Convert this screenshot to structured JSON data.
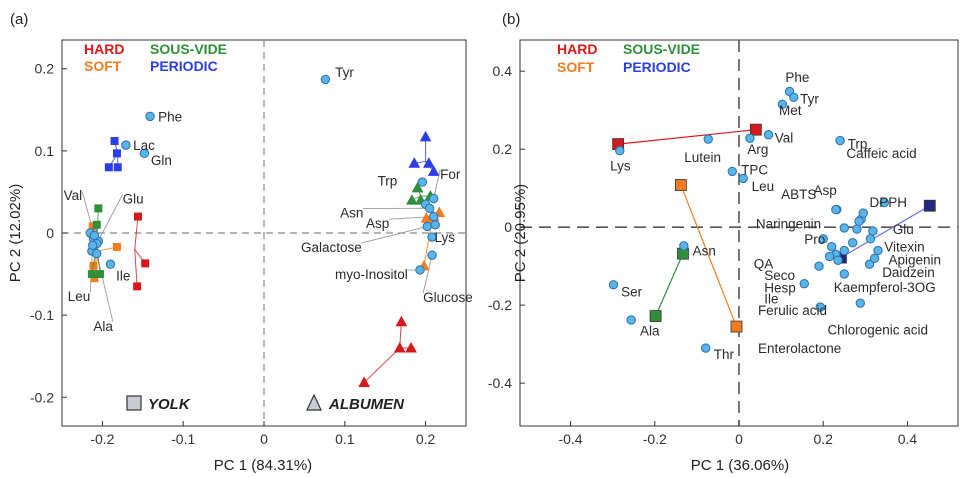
{
  "colors": {
    "hard": "#d7191c",
    "soft": "#f47c20",
    "sous_vide": "#2f8f3a",
    "periodic": "#2b3ee8",
    "point_fill": "#5ab4e6",
    "point_stroke": "#2a6fb0",
    "navy": "#1f2a80",
    "axis": "#333333",
    "dash": "#888888",
    "leader": "#9a9a9a"
  },
  "chart_data": [
    {
      "type": "scatter",
      "panel_label": "(a)",
      "xlabel": "PC 1 (84.31%)",
      "ylabel": "PC 2 (12.02%)",
      "xlim": [
        -0.25,
        0.25
      ],
      "ylim": [
        -0.235,
        0.235
      ],
      "xticks": [
        -0.2,
        -0.1,
        0,
        0.1,
        0.2
      ],
      "xtick_labels": [
        "-0.2",
        "-0.1",
        "0",
        "0.1",
        "0.2"
      ],
      "yticks": [
        -0.2,
        -0.1,
        0,
        0.1,
        0.2
      ],
      "ytick_labels": [
        "-0.2",
        "-0.1",
        "0",
        "0.1",
        "0.2"
      ],
      "legend": [
        {
          "text": "HARD",
          "color_key": "hard",
          "col": 0,
          "row": 0
        },
        {
          "text": "SOUS-VIDE",
          "color_key": "sous_vide",
          "col": 1,
          "row": 0
        },
        {
          "text": "SOFT",
          "color_key": "soft",
          "col": 0,
          "row": 1
        },
        {
          "text": "PERIODIC",
          "color_key": "periodic",
          "col": 1,
          "row": 1
        }
      ],
      "shape_legend": [
        {
          "text": "YOLK",
          "shape": "square"
        },
        {
          "text": "ALBUMEN",
          "shape": "triangle"
        }
      ],
      "variables": [
        {
          "name": "Phe",
          "x": -0.141,
          "y": 0.142
        },
        {
          "name": "Lac",
          "x": -0.171,
          "y": 0.107
        },
        {
          "name": "Gln",
          "x": -0.148,
          "y": 0.097
        },
        {
          "name": "Tyr",
          "x": 0.076,
          "y": 0.187
        },
        {
          "name": "Val",
          "x": -0.21,
          "y": -0.003
        },
        {
          "name": "Glu",
          "x": -0.207,
          "y": -0.013
        },
        {
          "name": "Ile",
          "x": -0.19,
          "y": -0.038
        },
        {
          "name": "Leu",
          "x": -0.212,
          "y": -0.015
        },
        {
          "name": "Ala",
          "x": -0.207,
          "y": -0.025
        },
        {
          "name": "Trp",
          "x": 0.196,
          "y": 0.062
        },
        {
          "name": "For",
          "x": 0.21,
          "y": 0.042
        },
        {
          "name": "Asn",
          "x": 0.205,
          "y": 0.03
        },
        {
          "name": "Asp",
          "x": 0.21,
          "y": 0.02
        },
        {
          "name": "Galactose",
          "x": 0.202,
          "y": 0.008
        },
        {
          "name": "Lys",
          "x": 0.208,
          "y": -0.005
        },
        {
          "name": "myo-Inositol",
          "x": 0.193,
          "y": -0.045
        },
        {
          "name": "Glucose",
          "x": 0.208,
          "y": -0.027
        }
      ],
      "unlabeled_points": [
        {
          "x": -0.215,
          "y": 0.0
        },
        {
          "x": -0.211,
          "y": -0.007
        },
        {
          "x": -0.205,
          "y": -0.01
        },
        {
          "x": -0.213,
          "y": -0.022
        },
        {
          "x": 0.2,
          "y": 0.035
        },
        {
          "x": 0.212,
          "y": 0.01
        }
      ],
      "label_offsets_note": "labels placed beside points",
      "label_positions": [
        {
          "name": "Phe",
          "lx": -0.131,
          "ly": 0.142,
          "anchor": "start"
        },
        {
          "name": "Lac",
          "lx": -0.162,
          "ly": 0.107,
          "anchor": "start"
        },
        {
          "name": "Gln",
          "lx": -0.14,
          "ly": 0.089,
          "anchor": "start"
        },
        {
          "name": "Tyr",
          "lx": 0.088,
          "ly": 0.196,
          "anchor": "start"
        },
        {
          "name": "Val",
          "lx": -0.225,
          "ly": 0.046,
          "anchor": "end",
          "leader": true
        },
        {
          "name": "Glu",
          "lx": -0.175,
          "ly": 0.042,
          "anchor": "start",
          "leader": true
        },
        {
          "name": "Ile",
          "lx": -0.183,
          "ly": -0.052,
          "anchor": "start"
        },
        {
          "name": "Leu",
          "lx": -0.215,
          "ly": -0.077,
          "anchor": "end",
          "leader": true
        },
        {
          "name": "Ala",
          "lx": -0.187,
          "ly": -0.113,
          "anchor": "end",
          "leader": true
        },
        {
          "name": "Trp",
          "lx": 0.165,
          "ly": 0.064,
          "anchor": "end"
        },
        {
          "name": "For",
          "lx": 0.218,
          "ly": 0.072,
          "anchor": "start",
          "leader": true
        },
        {
          "name": "Asn",
          "lx": 0.123,
          "ly": 0.025,
          "anchor": "end",
          "leader": true
        },
        {
          "name": "Asp",
          "lx": 0.155,
          "ly": 0.012,
          "anchor": "end",
          "leader": true
        },
        {
          "name": "Galactose",
          "lx": 0.121,
          "ly": -0.017,
          "anchor": "end",
          "leader": true
        },
        {
          "name": "Lys",
          "lx": 0.211,
          "ly": -0.005,
          "anchor": "start"
        },
        {
          "name": "myo-Inositol",
          "lx": 0.178,
          "ly": -0.05,
          "anchor": "end",
          "leader": true
        },
        {
          "name": "Glucose",
          "lx": 0.197,
          "ly": -0.078,
          "anchor": "start",
          "leader": true
        }
      ],
      "groups": [
        {
          "treatment": "periodic",
          "shape": "square",
          "points": [
            [
              -0.185,
              0.112
            ],
            [
              -0.192,
              0.08
            ],
            [
              -0.181,
              0.08
            ],
            [
              -0.182,
              0.097
            ]
          ],
          "center": [
            -0.181,
            0.097
          ]
        },
        {
          "treatment": "hard",
          "shape": "square",
          "points": [
            [
              -0.156,
              0.02
            ],
            [
              -0.147,
              -0.037
            ],
            [
              -0.157,
              -0.065
            ]
          ],
          "center": [
            -0.16,
            -0.02
          ]
        },
        {
          "treatment": "soft",
          "shape": "square",
          "points": [
            [
              -0.212,
              0.008
            ],
            [
              -0.211,
              -0.04
            ],
            [
              -0.21,
              -0.055
            ],
            [
              -0.182,
              -0.017
            ]
          ],
          "center": [
            -0.205,
            -0.022
          ]
        },
        {
          "treatment": "sous_vide",
          "shape": "square",
          "points": [
            [
              -0.205,
              0.03
            ],
            [
              -0.213,
              -0.05
            ],
            [
              -0.203,
              -0.05
            ],
            [
              -0.207,
              0.01
            ]
          ],
          "center": [
            -0.207,
            -0.015
          ]
        },
        {
          "treatment": "periodic",
          "shape": "triangle",
          "points": [
            [
              0.2,
              0.117
            ],
            [
              0.186,
              0.085
            ],
            [
              0.204,
              0.085
            ],
            [
              0.21,
              0.075
            ]
          ],
          "center": [
            0.2,
            0.087
          ]
        },
        {
          "treatment": "sous_vide",
          "shape": "triangle",
          "points": [
            [
              0.19,
              0.055
            ],
            [
              0.183,
              0.04
            ],
            [
              0.194,
              0.04
            ],
            [
              0.206,
              0.045
            ]
          ],
          "center": [
            0.194,
            0.045
          ]
        },
        {
          "treatment": "soft",
          "shape": "triangle",
          "points": [
            [
              0.217,
              0.025
            ],
            [
              0.201,
              0.018
            ],
            [
              0.198,
              -0.04
            ],
            [
              0.21,
              0.02
            ]
          ],
          "center": [
            0.207,
            0.01
          ]
        },
        {
          "treatment": "hard",
          "shape": "triangle",
          "points": [
            [
              0.17,
              -0.108
            ],
            [
              0.182,
              -0.14
            ],
            [
              0.124,
              -0.182
            ],
            [
              0.168,
              -0.14
            ]
          ],
          "center": [
            0.168,
            -0.14
          ]
        }
      ]
    },
    {
      "type": "scatter",
      "panel_label": "(b)",
      "xlabel": "PC 1 (36.06%)",
      "ylabel": "PC 2 (20.95%)",
      "xlim": [
        -0.52,
        0.52
      ],
      "ylim": [
        -0.51,
        0.48
      ],
      "xticks": [
        -0.4,
        -0.2,
        0,
        0.2,
        0.4
      ],
      "xtick_labels": [
        "-0.4",
        "-0.2",
        "0",
        "0.2",
        "0.4"
      ],
      "yticks": [
        -0.4,
        -0.2,
        0,
        0.2,
        0.4
      ],
      "ytick_labels": [
        "-0.4",
        "-0.2",
        "0",
        "0.2",
        "0.4"
      ],
      "legend": [
        {
          "text": "HARD",
          "color_key": "hard",
          "col": 0,
          "row": 0
        },
        {
          "text": "SOUS-VIDE",
          "color_key": "sous_vide",
          "col": 1,
          "row": 0
        },
        {
          "text": "SOFT",
          "color_key": "soft",
          "col": 0,
          "row": 1
        },
        {
          "text": "PERIODIC",
          "color_key": "periodic",
          "col": 1,
          "row": 1
        }
      ],
      "variables": [
        {
          "name": "Phe",
          "x": 0.12,
          "y": 0.348
        },
        {
          "name": "Tyr",
          "x": 0.13,
          "y": 0.333
        },
        {
          "name": "Met",
          "x": 0.103,
          "y": 0.315
        },
        {
          "name": "Val",
          "x": 0.07,
          "y": 0.237
        },
        {
          "name": "Arg",
          "x": 0.026,
          "y": 0.228
        },
        {
          "name": "Trp",
          "x": 0.24,
          "y": 0.222
        },
        {
          "name": "Lutein",
          "x": -0.073,
          "y": 0.226
        },
        {
          "name": "Lys",
          "x": -0.283,
          "y": 0.196
        },
        {
          "name": "TPC",
          "x": -0.016,
          "y": 0.143
        },
        {
          "name": "Leu",
          "x": 0.01,
          "y": 0.125
        },
        {
          "name": "Caffeic acid",
          "x": 0.345,
          "y": 0.063
        },
        {
          "name": "Asp",
          "x": 0.232,
          "y": 0.045
        },
        {
          "name": "DPPH",
          "x": 0.295,
          "y": 0.036
        },
        {
          "name": "ABTS",
          "x": 0.23,
          "y": 0.045
        },
        {
          "name": "Naringenin",
          "x": 0.285,
          "y": 0.015
        },
        {
          "name": "Pro",
          "x": 0.25,
          "y": -0.002
        },
        {
          "name": "Glu",
          "x": 0.318,
          "y": -0.01
        },
        {
          "name": "QA",
          "x": 0.2,
          "y": -0.03
        },
        {
          "name": "Vitexin",
          "x": 0.312,
          "y": -0.03
        },
        {
          "name": "Seco",
          "x": 0.22,
          "y": -0.05
        },
        {
          "name": "Apigenin",
          "x": 0.33,
          "y": -0.06
        },
        {
          "name": "Hesp",
          "x": 0.215,
          "y": -0.075
        },
        {
          "name": "Daidzein",
          "x": 0.322,
          "y": -0.08
        },
        {
          "name": "Ile",
          "x": 0.19,
          "y": -0.1
        },
        {
          "name": "Kaempferol-3OG",
          "x": 0.25,
          "y": -0.12
        },
        {
          "name": "Ferulic acid",
          "x": 0.155,
          "y": -0.145
        },
        {
          "name": "Chlorogenic acid",
          "x": 0.288,
          "y": -0.195
        },
        {
          "name": "Enterolactone",
          "x": 0.193,
          "y": -0.205
        },
        {
          "name": "Asn",
          "x": -0.131,
          "y": -0.048
        },
        {
          "name": "Ser",
          "x": -0.298,
          "y": -0.148
        },
        {
          "name": "Ala",
          "x": -0.256,
          "y": -0.238
        },
        {
          "name": "Thr",
          "x": -0.079,
          "y": -0.31
        }
      ],
      "unlabeled_points": [
        {
          "x": 0.23,
          "y": -0.07
        },
        {
          "x": 0.25,
          "y": -0.06
        },
        {
          "x": 0.235,
          "y": -0.085
        },
        {
          "x": 0.27,
          "y": -0.04
        },
        {
          "x": 0.29,
          "y": 0.02
        },
        {
          "x": 0.31,
          "y": -0.095
        },
        {
          "x": 0.28,
          "y": -0.005
        }
      ],
      "label_positions": [
        {
          "name": "Phe",
          "lx": 0.11,
          "ly": 0.385,
          "anchor": "start"
        },
        {
          "name": "Tyr",
          "lx": 0.145,
          "ly": 0.33,
          "anchor": "start"
        },
        {
          "name": "Met",
          "lx": 0.095,
          "ly": 0.3,
          "anchor": "start"
        },
        {
          "name": "Val",
          "lx": 0.085,
          "ly": 0.23,
          "anchor": "start"
        },
        {
          "name": "Arg",
          "lx": 0.02,
          "ly": 0.2,
          "anchor": "start"
        },
        {
          "name": "Trp",
          "lx": 0.258,
          "ly": 0.215,
          "anchor": "start"
        },
        {
          "name": "Lutein",
          "lx": -0.13,
          "ly": 0.18,
          "anchor": "start"
        },
        {
          "name": "Lys",
          "lx": -0.306,
          "ly": 0.158,
          "anchor": "start"
        },
        {
          "name": "TPC",
          "lx": 0.005,
          "ly": 0.148,
          "anchor": "start"
        },
        {
          "name": "Leu",
          "lx": 0.03,
          "ly": 0.105,
          "anchor": "start"
        },
        {
          "name": "Caffeic acid",
          "lx": 0.255,
          "ly": 0.19,
          "anchor": "start"
        },
        {
          "name": "Asp",
          "lx": 0.177,
          "ly": 0.095,
          "anchor": "start"
        },
        {
          "name": "DPPH",
          "lx": 0.31,
          "ly": 0.065,
          "anchor": "start"
        },
        {
          "name": "ABTS",
          "lx": 0.1,
          "ly": 0.085,
          "anchor": "start"
        },
        {
          "name": "Naringenin",
          "lx": 0.04,
          "ly": 0.01,
          "anchor": "start"
        },
        {
          "name": "Pro",
          "lx": 0.155,
          "ly": -0.03,
          "anchor": "start"
        },
        {
          "name": "Glu",
          "lx": 0.365,
          "ly": -0.005,
          "anchor": "start"
        },
        {
          "name": "QA",
          "lx": 0.035,
          "ly": -0.093,
          "anchor": "start"
        },
        {
          "name": "Vitexin",
          "lx": 0.345,
          "ly": -0.05,
          "anchor": "start"
        },
        {
          "name": "Seco",
          "lx": 0.06,
          "ly": -0.123,
          "anchor": "start"
        },
        {
          "name": "Apigenin",
          "lx": 0.355,
          "ly": -0.083,
          "anchor": "start"
        },
        {
          "name": "Hesp",
          "lx": 0.06,
          "ly": -0.155,
          "anchor": "start"
        },
        {
          "name": "Daidzein",
          "lx": 0.34,
          "ly": -0.115,
          "anchor": "start"
        },
        {
          "name": "Ile",
          "lx": 0.06,
          "ly": -0.183,
          "anchor": "start"
        },
        {
          "name": "Kaempferol-3OG",
          "lx": 0.225,
          "ly": -0.153,
          "anchor": "start"
        },
        {
          "name": "Ferulic acid",
          "lx": 0.045,
          "ly": -0.213,
          "anchor": "start"
        },
        {
          "name": "Chlorogenic acid",
          "lx": 0.21,
          "ly": -0.262,
          "anchor": "start"
        },
        {
          "name": "Enterolactone",
          "lx": 0.045,
          "ly": -0.31,
          "anchor": "start"
        },
        {
          "name": "Asn",
          "lx": -0.11,
          "ly": -0.06,
          "anchor": "start"
        },
        {
          "name": "Ser",
          "lx": -0.28,
          "ly": -0.165,
          "anchor": "start"
        },
        {
          "name": "Ala",
          "lx": -0.235,
          "ly": -0.265,
          "anchor": "start"
        },
        {
          "name": "Thr",
          "lx": -0.06,
          "ly": -0.325,
          "anchor": "start"
        }
      ],
      "centroid_lines": [
        {
          "treatment": "hard",
          "from": [
            -0.287,
            0.213
          ],
          "to": [
            0.04,
            0.25
          ],
          "marker": "both"
        },
        {
          "treatment": "soft",
          "from": [
            -0.138,
            0.108
          ],
          "to": [
            -0.006,
            -0.255
          ],
          "marker": "both"
        },
        {
          "treatment": "sous_vide",
          "from": [
            -0.133,
            -0.068
          ],
          "to": [
            -0.198,
            -0.228
          ],
          "marker": "both"
        },
        {
          "treatment": "periodic",
          "from": [
            0.453,
            0.055
          ],
          "to": [
            0.242,
            -0.078
          ],
          "marker": "both"
        }
      ]
    }
  ]
}
